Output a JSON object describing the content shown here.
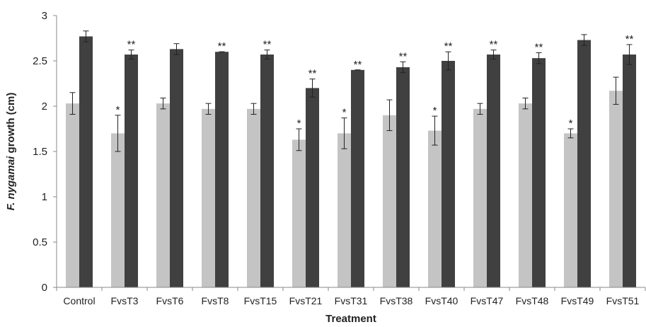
{
  "chart_data": {
    "type": "bar",
    "xlabel": "Treatment",
    "ylabel_italic": "F. nygamai",
    "ylabel_rest": " growth (cm)",
    "ylim": [
      0,
      3
    ],
    "yticks": [
      "0",
      "0.5",
      "1",
      "1.5",
      "2",
      "2.5",
      "3"
    ],
    "grid": false,
    "categories": [
      "Control",
      "FvsT3",
      "FvsT6",
      "FvsT8",
      "FvsT15",
      "FvsT21",
      "FvsT31",
      "FvsT38",
      "FvsT40",
      "FvsT47",
      "FvsT48",
      "FvsT49",
      "FvsT51"
    ],
    "series": [
      {
        "color": "#c4c4c4",
        "values": [
          2.03,
          1.7,
          2.03,
          1.97,
          1.97,
          1.63,
          1.7,
          1.9,
          1.73,
          1.97,
          2.03,
          1.7,
          2.17
        ],
        "errors": [
          0.12,
          0.2,
          0.06,
          0.06,
          0.06,
          0.12,
          0.17,
          0.17,
          0.16,
          0.06,
          0.06,
          0.05,
          0.15
        ],
        "annotations": [
          "",
          "*",
          "",
          "",
          "",
          "*",
          "*",
          "",
          "*",
          "",
          "",
          "*",
          ""
        ]
      },
      {
        "color": "#404040",
        "values": [
          2.77,
          2.57,
          2.63,
          2.6,
          2.57,
          2.2,
          2.4,
          2.43,
          2.5,
          2.57,
          2.53,
          2.73,
          2.57
        ],
        "errors": [
          0.06,
          0.05,
          0.06,
          0.0,
          0.05,
          0.1,
          0.0,
          0.06,
          0.1,
          0.05,
          0.06,
          0.06,
          0.11
        ],
        "annotations": [
          "",
          "**",
          "",
          "**",
          "**",
          "**",
          "**",
          "**",
          "**",
          "**",
          "**",
          "",
          "**"
        ]
      }
    ]
  }
}
